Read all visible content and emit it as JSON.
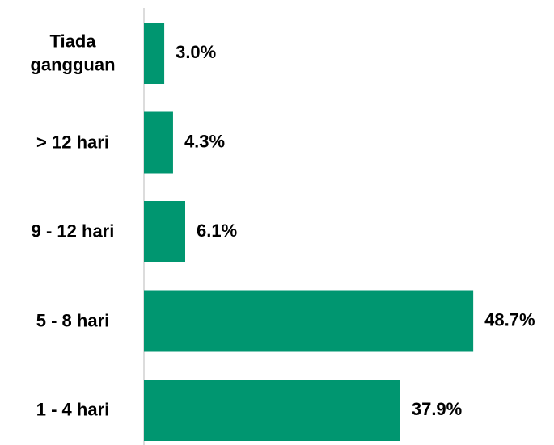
{
  "chart_data": {
    "type": "bar",
    "orientation": "horizontal",
    "categories": [
      "Tiada gangguan",
      "> 12 hari",
      "9 - 12 hari",
      "5 - 8 hari",
      "1 - 4 hari"
    ],
    "values": [
      3.0,
      4.3,
      6.1,
      48.7,
      37.9
    ],
    "value_labels": [
      "3.0%",
      "4.3%",
      "6.1%",
      "48.7%",
      "37.9%"
    ],
    "color": "#009670"
  }
}
